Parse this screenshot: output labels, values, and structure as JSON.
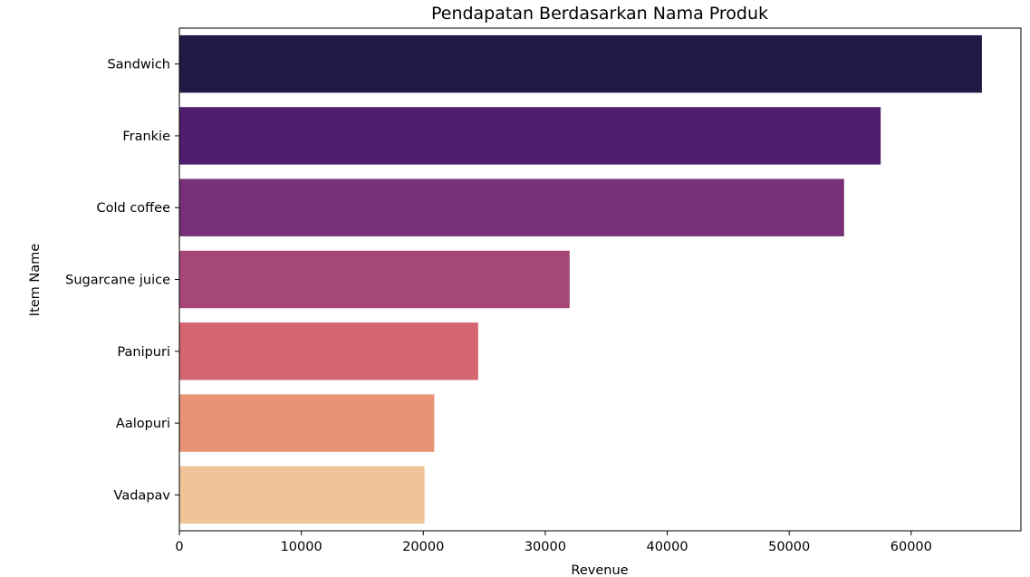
{
  "chart_data": {
    "type": "bar",
    "orientation": "horizontal",
    "title": "Pendapatan Berdasarkan Nama Produk",
    "xlabel": "Revenue",
    "ylabel": "Item Name",
    "categories": [
      "Sandwich",
      "Frankie",
      "Cold coffee",
      "Sugarcane juice",
      "Panipuri",
      "Aalopuri",
      "Vadapav"
    ],
    "values": [
      65800,
      57500,
      54500,
      32000,
      24500,
      20900,
      20100
    ],
    "colors": [
      "#221845",
      "#501e6e",
      "#783176",
      "#a64877",
      "#d56571",
      "#e89276",
      "#efc597"
    ],
    "xlim": [
      0,
      69000
    ],
    "xticks": [
      0,
      10000,
      20000,
      30000,
      40000,
      50000,
      60000
    ],
    "xtick_labels": [
      "0",
      "10000",
      "20000",
      "30000",
      "40000",
      "50000",
      "60000"
    ],
    "grid": false,
    "legend": "none"
  }
}
